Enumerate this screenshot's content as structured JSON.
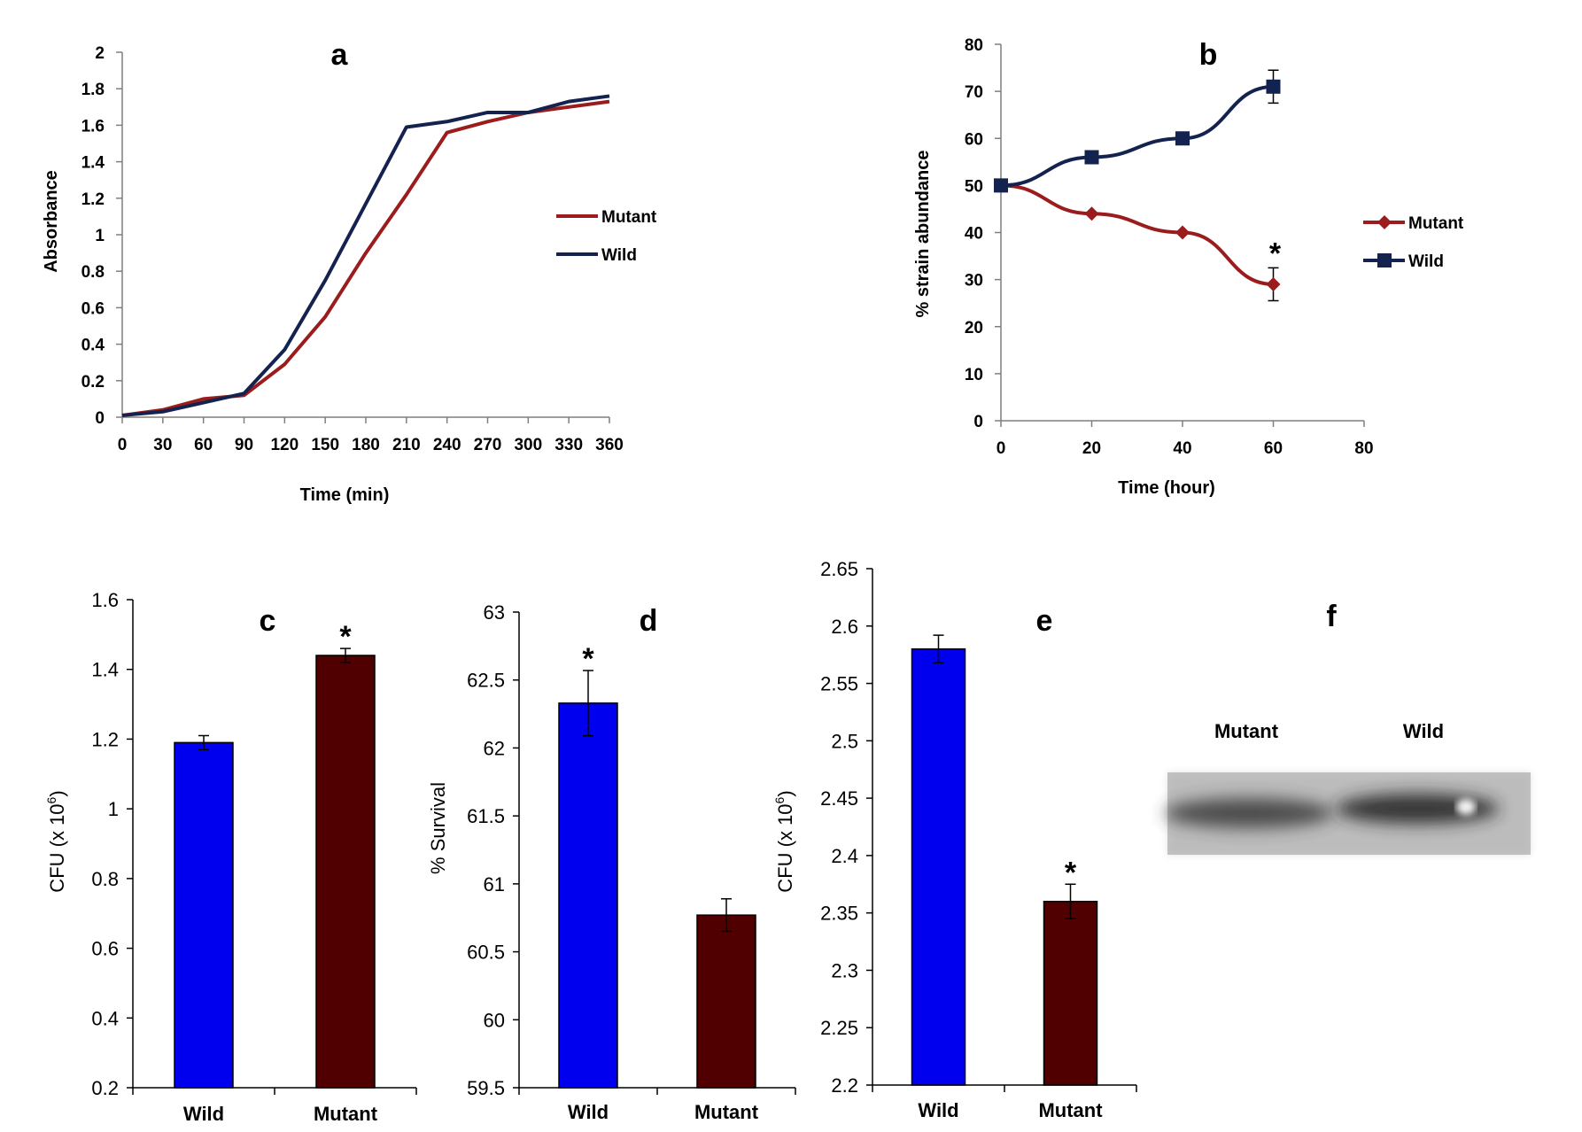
{
  "chart_data": [
    {
      "id": "a",
      "type": "line",
      "title": "a",
      "xlabel": "Time (min)",
      "ylabel": "Absorbance",
      "x": [
        0,
        30,
        60,
        90,
        120,
        150,
        180,
        210,
        240,
        270,
        300,
        330,
        360
      ],
      "xticks": [
        "0",
        "30",
        "60",
        "90",
        "120",
        "150",
        "180",
        "210",
        "240",
        "270",
        "300",
        "330",
        "360"
      ],
      "yticks": [
        "0",
        "0.2",
        "0.4",
        "0.6",
        "0.8",
        "1",
        "1.2",
        "1.4",
        "1.6",
        "1.8",
        "2"
      ],
      "ylim": [
        0,
        2
      ],
      "legend_position": "right",
      "series": [
        {
          "name": "Mutant",
          "color": "#9b1c1c",
          "values": [
            0.01,
            0.04,
            0.1,
            0.12,
            0.29,
            0.55,
            0.9,
            1.22,
            1.56,
            1.62,
            1.67,
            1.7,
            1.73
          ]
        },
        {
          "name": "Wild",
          "color": "#14224f",
          "values": [
            0.01,
            0.03,
            0.08,
            0.13,
            0.37,
            0.75,
            1.17,
            1.59,
            1.62,
            1.67,
            1.67,
            1.73,
            1.76
          ]
        }
      ]
    },
    {
      "id": "b",
      "type": "line",
      "title": "b",
      "xlabel": "Time (hour)",
      "ylabel": "% strain abundance",
      "x": [
        0,
        20,
        40,
        60
      ],
      "xticks": [
        "0",
        "20",
        "40",
        "60",
        "80"
      ],
      "yticks": [
        "0",
        "10",
        "20",
        "30",
        "40",
        "50",
        "60",
        "70",
        "80"
      ],
      "xlim": [
        0,
        80
      ],
      "ylim": [
        0,
        80
      ],
      "legend_position": "right",
      "annotations": [
        "*"
      ],
      "series": [
        {
          "name": "Mutant",
          "color": "#9b1c1c",
          "marker": "diamond",
          "values": [
            50,
            44,
            40,
            29
          ],
          "error": [
            0,
            0,
            0,
            3.5
          ]
        },
        {
          "name": "Wild",
          "color": "#14224f",
          "marker": "square",
          "values": [
            50,
            56,
            60,
            71
          ],
          "error": [
            0,
            0,
            0,
            3.5
          ]
        }
      ]
    },
    {
      "id": "c",
      "type": "bar",
      "title": "c",
      "ylabel": "CFU (x 10",
      "ylabel_exp": "6",
      "ylabel_close": ")",
      "categories": [
        "Wild",
        "Mutant"
      ],
      "values": [
        1.19,
        1.44
      ],
      "errors": [
        0.02,
        0.02
      ],
      "colors": [
        "#0000ee",
        "#500000"
      ],
      "significance": [
        "",
        "*"
      ],
      "yticks": [
        "0.2",
        "0.4",
        "0.6",
        "0.8",
        "1",
        "1.2",
        "1.4",
        "1.6"
      ],
      "ylim": [
        0.2,
        1.6
      ]
    },
    {
      "id": "d",
      "type": "bar",
      "title": "d",
      "ylabel": "% Survival",
      "categories": [
        "Wild",
        "Mutant"
      ],
      "values": [
        62.33,
        60.77
      ],
      "errors": [
        0.24,
        0.12
      ],
      "colors": [
        "#0000ee",
        "#500000"
      ],
      "significance": [
        "*",
        ""
      ],
      "yticks": [
        "59.5",
        "60",
        "60.5",
        "61",
        "61.5",
        "62",
        "62.5",
        "63"
      ],
      "ylim": [
        59.5,
        63
      ]
    },
    {
      "id": "e",
      "type": "bar",
      "title": "e",
      "ylabel": "CFU (x 10",
      "ylabel_exp": "6",
      "ylabel_close": ")",
      "categories": [
        "Wild",
        "Mutant"
      ],
      "values": [
        2.58,
        2.36
      ],
      "errors": [
        0.012,
        0.015
      ],
      "colors": [
        "#0000ee",
        "#500000"
      ],
      "significance": [
        "",
        "*"
      ],
      "yticks": [
        "2.2",
        "2.25",
        "2.3",
        "2.35",
        "2.4",
        "2.45",
        "2.5",
        "2.55",
        "2.6",
        "2.65"
      ],
      "ylim": [
        2.2,
        2.65
      ]
    }
  ],
  "panel_f": {
    "title": "f",
    "lanes": [
      "Mutant",
      "Wild"
    ]
  }
}
